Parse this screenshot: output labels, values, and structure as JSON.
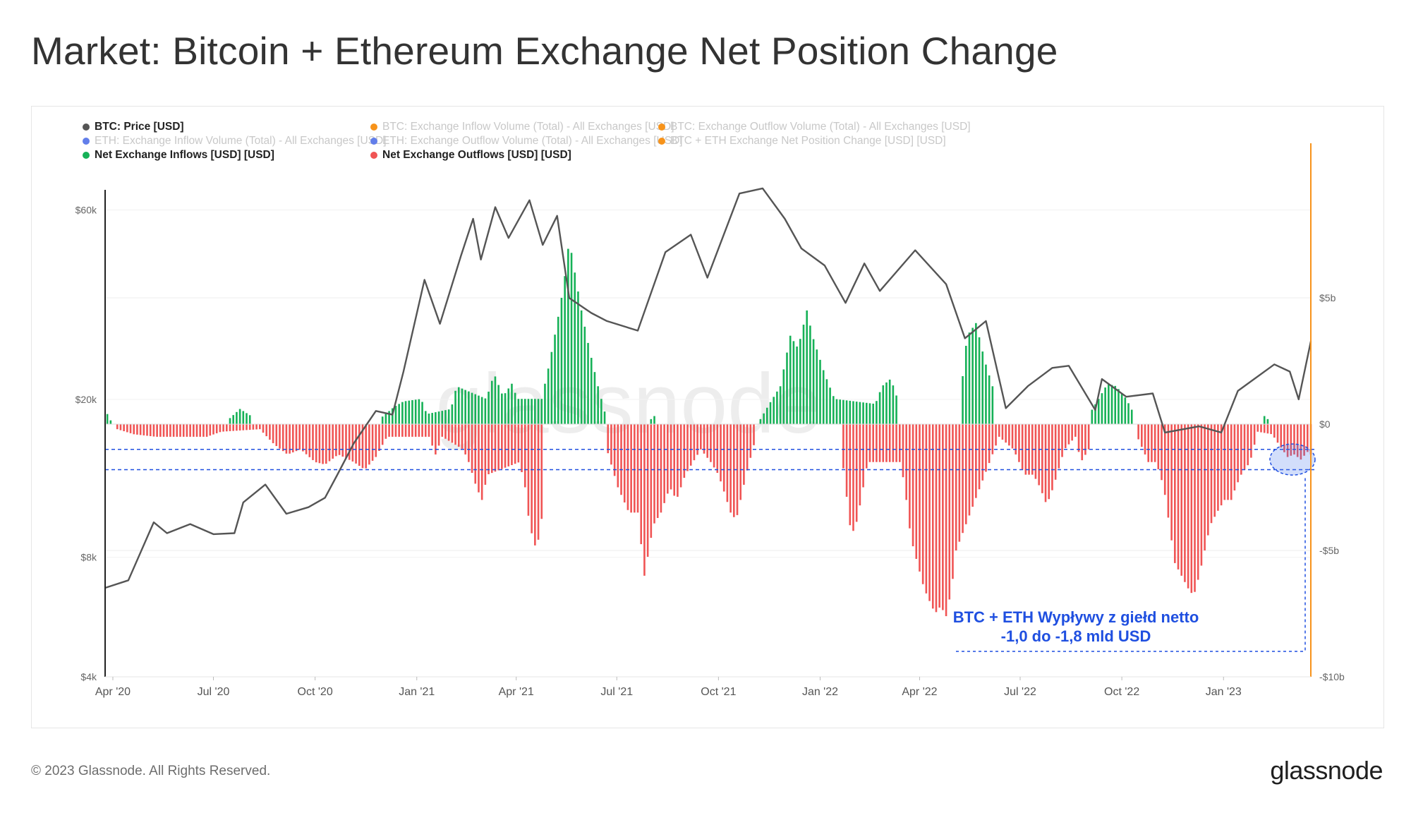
{
  "title": "Market: Bitcoin + Ethereum Exchange Net Position Change",
  "footer": {
    "copyright": "© 2023 Glassnode. All Rights Reserved.",
    "logo_text": "glassnode"
  },
  "watermark": "glassnode",
  "legend": [
    {
      "label": "BTC: Price [USD]",
      "color": "#555555",
      "active": true
    },
    {
      "label": "BTC: Exchange Inflow Volume (Total) - All Exchanges [USD]",
      "color": "#f7931a",
      "active": false
    },
    {
      "label": "BTC: Exchange Outflow Volume (Total) - All Exchanges [USD]",
      "color": "#f7931a",
      "active": false
    },
    {
      "label": "ETH: Exchange Inflow Volume (Total) - All Exchanges [USD]",
      "color": "#627eea",
      "active": false
    },
    {
      "label": "ETH: Exchange Outflow Volume (Total) - All Exchanges [USD]",
      "color": "#627eea",
      "active": false
    },
    {
      "label": "BTC + ETH Exchange Net Position Change [USD] [USD]",
      "color": "#f7931a",
      "active": false
    },
    {
      "label": "Net Exchange Inflows [USD] [USD]",
      "color": "#16b157",
      "active": true
    },
    {
      "label": "Net Exchange Outflows [USD] [USD]",
      "color": "#f05454",
      "active": true
    }
  ],
  "annotation": {
    "line1": "BTC + ETH Wypływy z giełd netto",
    "line2": "-1,0 do -1,8 mld USD",
    "color": "#1f4fe0",
    "levels": [
      -1.0,
      -1.8
    ]
  },
  "chart_data": {
    "type": "line+bar",
    "x_tick_labels": [
      "Apr '20",
      "Jul '20",
      "Oct '20",
      "Jan '21",
      "Apr '21",
      "Jul '21",
      "Oct '21",
      "Jan '22",
      "Apr '22",
      "Jul '22",
      "Oct '22",
      "Jan '23"
    ],
    "x_range": [
      "2020-03-25",
      "2023-03-21"
    ],
    "left_axis": {
      "scale": "log",
      "ticks": [
        4000,
        8000,
        20000,
        60000
      ],
      "tick_labels": [
        "$4k",
        "$8k",
        "$20k",
        "$60k"
      ],
      "range": [
        4000,
        75000
      ]
    },
    "right_axis": {
      "scale": "linear",
      "ticks": [
        5,
        0,
        -5,
        -10
      ],
      "tick_labels": [
        "$5b",
        "$0",
        "-$5b",
        "-$10b"
      ],
      "range": [
        -10,
        10
      ]
    },
    "series": [
      {
        "name": "BTC: Price [USD]",
        "axis": "left",
        "color": "#555555",
        "points": [
          [
            "2020-03-25",
            6700
          ],
          [
            "2020-04-15",
            7000
          ],
          [
            "2020-05-08",
            9800
          ],
          [
            "2020-05-20",
            9200
          ],
          [
            "2020-06-10",
            9700
          ],
          [
            "2020-07-01",
            9150
          ],
          [
            "2020-07-20",
            9200
          ],
          [
            "2020-07-28",
            11000
          ],
          [
            "2020-08-17",
            12200
          ],
          [
            "2020-09-05",
            10300
          ],
          [
            "2020-09-25",
            10700
          ],
          [
            "2020-10-10",
            11300
          ],
          [
            "2020-10-21",
            12900
          ],
          [
            "2020-11-05",
            15500
          ],
          [
            "2020-11-25",
            18700
          ],
          [
            "2020-12-10",
            18300
          ],
          [
            "2020-12-20",
            23500
          ],
          [
            "2021-01-08",
            40000
          ],
          [
            "2021-01-22",
            31000
          ],
          [
            "2021-02-10",
            46000
          ],
          [
            "2021-02-21",
            57000
          ],
          [
            "2021-02-28",
            45000
          ],
          [
            "2021-03-13",
            61000
          ],
          [
            "2021-03-25",
            51000
          ],
          [
            "2021-04-13",
            63500
          ],
          [
            "2021-04-25",
            49000
          ],
          [
            "2021-05-08",
            58000
          ],
          [
            "2021-05-19",
            36000
          ],
          [
            "2021-06-08",
            33000
          ],
          [
            "2021-06-22",
            31500
          ],
          [
            "2021-07-20",
            29800
          ],
          [
            "2021-08-14",
            47000
          ],
          [
            "2021-09-06",
            52000
          ],
          [
            "2021-09-21",
            40500
          ],
          [
            "2021-10-20",
            66000
          ],
          [
            "2021-11-10",
            68000
          ],
          [
            "2021-11-30",
            57000
          ],
          [
            "2021-12-15",
            48000
          ],
          [
            "2022-01-05",
            43500
          ],
          [
            "2022-01-24",
            35000
          ],
          [
            "2022-02-10",
            44000
          ],
          [
            "2022-02-24",
            37500
          ],
          [
            "2022-03-28",
            47500
          ],
          [
            "2022-04-25",
            39000
          ],
          [
            "2022-05-12",
            28500
          ],
          [
            "2022-05-31",
            31500
          ],
          [
            "2022-06-18",
            19000
          ],
          [
            "2022-07-08",
            21600
          ],
          [
            "2022-07-30",
            24000
          ],
          [
            "2022-08-14",
            24300
          ],
          [
            "2022-09-07",
            18800
          ],
          [
            "2022-09-13",
            22500
          ],
          [
            "2022-10-05",
            20300
          ],
          [
            "2022-10-29",
            20700
          ],
          [
            "2022-11-09",
            16500
          ],
          [
            "2022-12-10",
            17100
          ],
          [
            "2022-12-30",
            16500
          ],
          [
            "2023-01-14",
            21000
          ],
          [
            "2023-02-16",
            24500
          ],
          [
            "2023-03-02",
            23500
          ],
          [
            "2023-03-10",
            20000
          ],
          [
            "2023-03-21",
            28000
          ]
        ]
      },
      {
        "name": "Net Exchange Inflows [USD] [USD]",
        "axis": "right",
        "color": "#16b157",
        "points": [
          [
            "2020-03-27",
            0.4
          ],
          [
            "2020-03-30",
            0.15
          ],
          [
            "2020-07-15",
            0.2
          ],
          [
            "2020-07-25",
            0.6
          ],
          [
            "2020-08-05",
            0.3
          ],
          [
            "2020-12-01",
            0.3
          ],
          [
            "2020-12-12",
            0.7
          ],
          [
            "2020-12-20",
            0.9
          ],
          [
            "2021-01-05",
            1.0
          ],
          [
            "2021-01-10",
            0.4
          ],
          [
            "2021-02-01",
            0.6
          ],
          [
            "2021-02-06",
            1.5
          ],
          [
            "2021-03-05",
            1.0
          ],
          [
            "2021-03-12",
            2.0
          ],
          [
            "2021-03-20",
            1.1
          ],
          [
            "2021-03-28",
            1.6
          ],
          [
            "2021-04-02",
            1.0
          ],
          [
            "2021-04-24",
            1.0
          ],
          [
            "2021-05-01",
            2.4
          ],
          [
            "2021-05-08",
            4.0
          ],
          [
            "2021-05-14",
            5.5
          ],
          [
            "2021-05-19",
            7.3
          ],
          [
            "2021-05-24",
            6.0
          ],
          [
            "2021-05-30",
            4.5
          ],
          [
            "2021-06-06",
            3.0
          ],
          [
            "2021-06-14",
            1.5
          ],
          [
            "2021-06-20",
            0.5
          ],
          [
            "2021-08-01",
            0.2
          ],
          [
            "2021-08-06",
            0.4
          ],
          [
            "2021-11-08",
            0.2
          ],
          [
            "2021-11-16",
            0.8
          ],
          [
            "2021-11-26",
            1.5
          ],
          [
            "2021-12-05",
            3.5
          ],
          [
            "2021-12-12",
            3.0
          ],
          [
            "2021-12-20",
            4.5
          ],
          [
            "2021-12-25",
            3.5
          ],
          [
            "2022-01-05",
            2.0
          ],
          [
            "2022-01-14",
            1.0
          ],
          [
            "2022-02-20",
            0.8
          ],
          [
            "2022-02-26",
            1.5
          ],
          [
            "2022-03-06",
            1.8
          ],
          [
            "2022-03-12",
            1.0
          ],
          [
            "2022-05-09",
            1.5
          ],
          [
            "2022-05-14",
            3.5
          ],
          [
            "2022-05-22",
            4.0
          ],
          [
            "2022-05-30",
            2.5
          ],
          [
            "2022-06-06",
            1.5
          ],
          [
            "2022-09-03",
            0.5
          ],
          [
            "2022-09-10",
            1.0
          ],
          [
            "2022-09-18",
            1.6
          ],
          [
            "2022-09-26",
            1.5
          ],
          [
            "2022-10-05",
            1.0
          ],
          [
            "2022-10-12",
            0.4
          ],
          [
            "2023-02-05",
            0.4
          ],
          [
            "2023-02-10",
            0.2
          ]
        ]
      },
      {
        "name": "Net Exchange Outflows [USD] [USD]",
        "axis": "right",
        "color": "#f05454",
        "points": [
          [
            "2020-04-05",
            -0.2
          ],
          [
            "2020-04-20",
            -0.4
          ],
          [
            "2020-05-10",
            -0.5
          ],
          [
            "2020-06-01",
            -0.5
          ],
          [
            "2020-06-25",
            -0.5
          ],
          [
            "2020-07-08",
            -0.3
          ],
          [
            "2020-08-12",
            -0.2
          ],
          [
            "2020-08-25",
            -0.8
          ],
          [
            "2020-09-06",
            -1.2
          ],
          [
            "2020-09-18",
            -1.0
          ],
          [
            "2020-10-01",
            -1.5
          ],
          [
            "2020-10-10",
            -1.6
          ],
          [
            "2020-10-22",
            -1.2
          ],
          [
            "2020-11-05",
            -1.5
          ],
          [
            "2020-11-15",
            -1.8
          ],
          [
            "2020-11-25",
            -1.3
          ],
          [
            "2020-12-05",
            -0.5
          ],
          [
            "2021-01-12",
            -0.5
          ],
          [
            "2021-01-18",
            -1.2
          ],
          [
            "2021-01-24",
            -0.5
          ],
          [
            "2021-02-12",
            -1.0
          ],
          [
            "2021-02-17",
            -1.5
          ],
          [
            "2021-02-24",
            -2.5
          ],
          [
            "2021-03-01",
            -3.0
          ],
          [
            "2021-03-06",
            -2.0
          ],
          [
            "2021-04-04",
            -1.5
          ],
          [
            "2021-04-09",
            -2.5
          ],
          [
            "2021-04-13",
            -4.0
          ],
          [
            "2021-04-18",
            -4.8
          ],
          [
            "2021-04-22",
            -4.5
          ],
          [
            "2021-04-26",
            -3.0
          ],
          [
            "2021-06-22",
            -1.0
          ],
          [
            "2021-07-02",
            -2.5
          ],
          [
            "2021-07-12",
            -3.5
          ],
          [
            "2021-07-20",
            -3.5
          ],
          [
            "2021-07-26",
            -6.0
          ],
          [
            "2021-07-30",
            -5.0
          ],
          [
            "2021-08-03",
            -4.0
          ],
          [
            "2021-08-10",
            -3.5
          ],
          [
            "2021-08-18",
            -2.5
          ],
          [
            "2021-08-24",
            -3.0
          ],
          [
            "2021-09-01",
            -2.0
          ],
          [
            "2021-09-15",
            -1.0
          ],
          [
            "2021-09-24",
            -1.5
          ],
          [
            "2021-10-01",
            -2.0
          ],
          [
            "2021-10-07",
            -2.8
          ],
          [
            "2021-10-12",
            -3.5
          ],
          [
            "2021-10-17",
            -3.8
          ],
          [
            "2021-10-21",
            -3.0
          ],
          [
            "2021-10-26",
            -2.0
          ],
          [
            "2021-11-04",
            -0.5
          ],
          [
            "2022-01-20",
            -1.0
          ],
          [
            "2022-01-24",
            -2.5
          ],
          [
            "2022-01-28",
            -4.0
          ],
          [
            "2022-02-01",
            -4.3
          ],
          [
            "2022-02-07",
            -3.0
          ],
          [
            "2022-02-13",
            -1.5
          ],
          [
            "2022-03-15",
            -1.5
          ],
          [
            "2022-03-20",
            -3.0
          ],
          [
            "2022-03-24",
            -4.5
          ],
          [
            "2022-03-30",
            -5.5
          ],
          [
            "2022-04-05",
            -6.5
          ],
          [
            "2022-04-10",
            -7.0
          ],
          [
            "2022-04-15",
            -7.5
          ],
          [
            "2022-04-20",
            -7.2
          ],
          [
            "2022-04-25",
            -7.6
          ],
          [
            "2022-04-30",
            -6.5
          ],
          [
            "2022-05-04",
            -5.0
          ],
          [
            "2022-06-12",
            -0.5
          ],
          [
            "2022-06-25",
            -1.0
          ],
          [
            "2022-07-05",
            -2.0
          ],
          [
            "2022-07-13",
            -2.0
          ],
          [
            "2022-07-19",
            -2.5
          ],
          [
            "2022-07-25",
            -3.2
          ],
          [
            "2022-07-31",
            -2.5
          ],
          [
            "2022-08-10",
            -1.0
          ],
          [
            "2022-08-20",
            -0.5
          ],
          [
            "2022-08-25",
            -1.5
          ],
          [
            "2022-09-01",
            -1.0
          ],
          [
            "2022-10-15",
            -0.5
          ],
          [
            "2022-10-20",
            -1.0
          ],
          [
            "2022-10-25",
            -1.5
          ],
          [
            "2022-11-01",
            -1.5
          ],
          [
            "2022-11-08",
            -2.5
          ],
          [
            "2022-11-13",
            -4.0
          ],
          [
            "2022-11-18",
            -5.5
          ],
          [
            "2022-11-24",
            -6.0
          ],
          [
            "2022-11-30",
            -6.5
          ],
          [
            "2022-12-05",
            -6.8
          ],
          [
            "2022-12-10",
            -6.0
          ],
          [
            "2022-12-15",
            -5.0
          ],
          [
            "2022-12-20",
            -4.0
          ],
          [
            "2022-12-26",
            -3.5
          ],
          [
            "2023-01-02",
            -3.0
          ],
          [
            "2023-01-08",
            -3.0
          ],
          [
            "2023-01-12",
            -2.5
          ],
          [
            "2023-01-17",
            -2.0
          ],
          [
            "2023-01-25",
            -1.5
          ],
          [
            "2023-02-01",
            -0.3
          ],
          [
            "2023-02-14",
            -0.4
          ],
          [
            "2023-02-20",
            -0.8
          ],
          [
            "2023-02-28",
            -1.3
          ],
          [
            "2023-03-06",
            -1.2
          ],
          [
            "2023-03-12",
            -1.4
          ],
          [
            "2023-03-18",
            -1.1
          ],
          [
            "2023-03-21",
            -1.2
          ]
        ]
      }
    ]
  }
}
